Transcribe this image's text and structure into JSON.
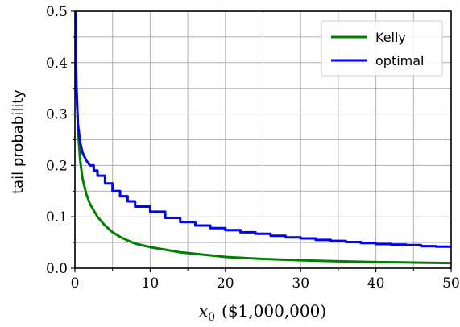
{
  "chart_data": {
    "type": "line",
    "xlabel": "x0 ($1,000,000)",
    "xlabel_main": "x",
    "xlabel_sub": "0",
    "xlabel_unit": "($1,000,000)",
    "ylabel": "tail probability",
    "xlim": [
      0,
      50
    ],
    "ylim": [
      0,
      0.5
    ],
    "x_ticks": [
      0,
      10,
      20,
      30,
      40,
      50
    ],
    "x_tick_labels": [
      "0",
      "10",
      "20",
      "30",
      "40",
      "50"
    ],
    "y_ticks": [
      0.0,
      0.1,
      0.2,
      0.3,
      0.4,
      0.5
    ],
    "y_tick_labels": [
      "0.0",
      "0.1",
      "0.2",
      "0.3",
      "0.4",
      "0.5"
    ],
    "grid": true,
    "legend": "top-right",
    "series": [
      {
        "name": "Kelly",
        "color": "#008000",
        "step": false,
        "x": [
          0.05,
          0.2,
          0.4,
          0.7,
          1,
          1.5,
          2,
          3,
          4,
          5,
          6,
          7,
          8,
          10,
          12,
          14,
          16,
          18,
          20,
          25,
          30,
          35,
          40,
          45,
          50
        ],
        "y": [
          0.5,
          0.36,
          0.27,
          0.21,
          0.175,
          0.145,
          0.125,
          0.1,
          0.083,
          0.07,
          0.061,
          0.054,
          0.048,
          0.041,
          0.036,
          0.031,
          0.028,
          0.025,
          0.022,
          0.018,
          0.0155,
          0.0135,
          0.012,
          0.011,
          0.01
        ]
      },
      {
        "name": "optimal",
        "color": "#0000ff",
        "step": true,
        "x": [
          0.05,
          0.2,
          0.4,
          0.7,
          1,
          1.5,
          2,
          2.5,
          3,
          4,
          5,
          6,
          7,
          8,
          10,
          12,
          14,
          16,
          18,
          20,
          22,
          24,
          26,
          28,
          30,
          32,
          34,
          36,
          38,
          40,
          42,
          44,
          46,
          48,
          50
        ],
        "y": [
          0.5,
          0.35,
          0.28,
          0.245,
          0.225,
          0.21,
          0.2,
          0.19,
          0.18,
          0.165,
          0.15,
          0.14,
          0.13,
          0.12,
          0.11,
          0.098,
          0.09,
          0.083,
          0.078,
          0.074,
          0.07,
          0.067,
          0.063,
          0.06,
          0.058,
          0.055,
          0.053,
          0.051,
          0.049,
          0.047,
          0.046,
          0.045,
          0.043,
          0.042,
          0.041
        ]
      }
    ]
  }
}
